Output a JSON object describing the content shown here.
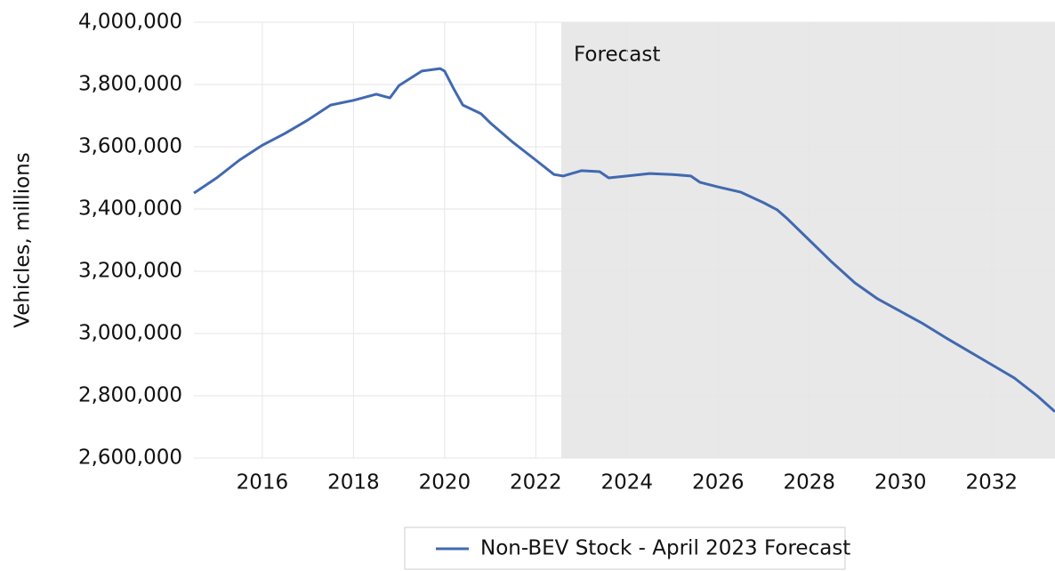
{
  "chart_data": {
    "type": "line",
    "y_axis_label": "Vehicles, millions",
    "annotation": {
      "label": "Forecast",
      "start": 2022.56,
      "color": "#e8e8e8"
    },
    "x": [
      2014.5,
      2015.0,
      2015.5,
      2016.0,
      2016.5,
      2017.0,
      2017.5,
      2018.0,
      2018.5,
      2018.8,
      2019.0,
      2019.5,
      2019.9,
      2020.0,
      2020.2,
      2020.4,
      2020.8,
      2021.0,
      2021.5,
      2022.0,
      2022.4,
      2022.6,
      2023.0,
      2023.4,
      2023.6,
      2024.0,
      2024.5,
      2025.0,
      2025.4,
      2025.6,
      2026.0,
      2026.5,
      2027.0,
      2027.3,
      2027.5,
      2028.0,
      2028.5,
      2029.0,
      2029.5,
      2030.0,
      2030.5,
      2031.0,
      2031.5,
      2032.0,
      2032.5,
      2033.0,
      2033.39
    ],
    "series": [
      {
        "name": "Non-BEV Stock - April 2023 Forecast",
        "color": "#4169b0",
        "values": [
          3451000,
          3500000,
          3557000,
          3605000,
          3643000,
          3686000,
          3734000,
          3749000,
          3769000,
          3757000,
          3797000,
          3843000,
          3851000,
          3843000,
          3786000,
          3734000,
          3706000,
          3677000,
          3614000,
          3557000,
          3511000,
          3506000,
          3523000,
          3520000,
          3500000,
          3506000,
          3514000,
          3511000,
          3506000,
          3486000,
          3471000,
          3454000,
          3420000,
          3397000,
          3371000,
          3300000,
          3229000,
          3163000,
          3111000,
          3071000,
          3031000,
          2986000,
          2943000,
          2900000,
          2857000,
          2800000,
          2749000
        ]
      }
    ],
    "xlim": [
      2014.5,
      2033.39
    ],
    "xticks": [
      2016,
      2018,
      2020,
      2022,
      2024,
      2026,
      2028,
      2030,
      2032
    ],
    "ylim": [
      2600000,
      4000000
    ],
    "yticks": [
      {
        "value": 2600000,
        "label": "2,600,000"
      },
      {
        "value": 2800000,
        "label": "2,800,000"
      },
      {
        "value": 3000000,
        "label": "3,000,000"
      },
      {
        "value": 3200000,
        "label": "3,200,000"
      },
      {
        "value": 3400000,
        "label": "3,400,000"
      },
      {
        "value": 3600000,
        "label": "3,600,000"
      },
      {
        "value": 3800000,
        "label": "3,800,000"
      },
      {
        "value": 4000000,
        "label": "4,000,000"
      }
    ],
    "grid": true,
    "legend": "bottom"
  }
}
